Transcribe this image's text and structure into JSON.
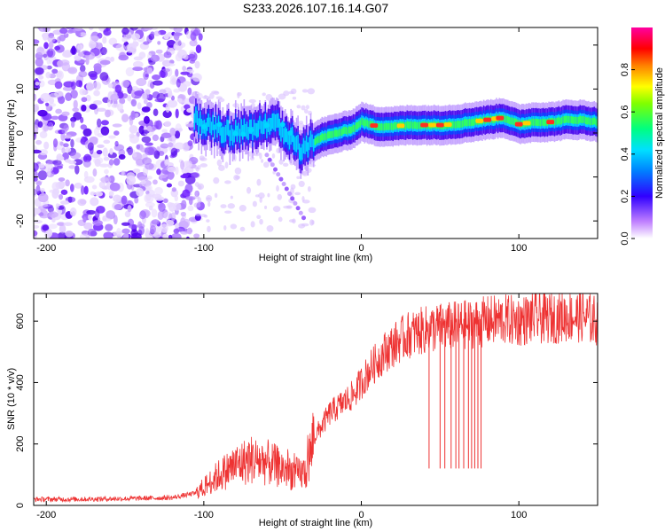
{
  "title": "S233.2026.107.16.14.G07",
  "chart_data": [
    {
      "type": "heatmap",
      "xlabel": "Height of straight line (km)",
      "ylabel": "Frequency (Hz)",
      "xlim": [
        -208,
        150
      ],
      "ylim": [
        -24,
        24
      ],
      "xticks": [
        -200,
        -100,
        0,
        100
      ],
      "yticks": [
        -20,
        -10,
        0,
        10,
        20
      ],
      "xtick_labels": [
        "-200",
        "-100",
        "0",
        "100"
      ],
      "ytick_labels": [
        "-20",
        "-10",
        "0",
        "10",
        "20"
      ],
      "ridge": {
        "description_x": [
          -105,
          -95,
          -85,
          -75,
          -65,
          -55,
          -45,
          -38,
          -32,
          -25,
          -15,
          -5,
          0,
          10,
          20,
          30,
          40,
          50,
          60,
          70,
          80,
          90,
          100,
          110,
          120,
          130,
          140,
          150
        ],
        "frequency": [
          3,
          1.5,
          0,
          0.5,
          1.5,
          2.5,
          -1,
          -4,
          -2.5,
          -1,
          0,
          1,
          2.5,
          1.5,
          1.5,
          1.8,
          1.8,
          1.8,
          2,
          2.5,
          3,
          3.5,
          2,
          2.5,
          2.5,
          3,
          3,
          2.5
        ]
      },
      "colorbar": {
        "label": "Normalized spectral amplitude",
        "range": [
          0,
          1
        ],
        "ticks": [
          0.0,
          0.2,
          0.4,
          0.6,
          0.8
        ],
        "tick_labels": [
          "0.0",
          "0.2",
          "0.4",
          "0.6",
          "0.8"
        ]
      }
    },
    {
      "type": "line",
      "xlabel": "Height of straight line (km)",
      "ylabel": "SNR (10 * v/v)",
      "xlim": [
        -208,
        150
      ],
      "ylim": [
        0,
        690
      ],
      "xticks": [
        -200,
        -100,
        0,
        100
      ],
      "yticks": [
        0,
        200,
        400,
        600
      ],
      "xtick_labels": [
        "-200",
        "-100",
        "0",
        "100"
      ],
      "ytick_labels": [
        "0",
        "200",
        "400",
        "600"
      ],
      "series": [
        {
          "name": "SNR",
          "color": "#ee3333",
          "x": [
            -208,
            -180,
            -150,
            -120,
            -105,
            -100,
            -90,
            -80,
            -70,
            -60,
            -50,
            -40,
            -35,
            -30,
            -25,
            -20,
            -15,
            -10,
            -5,
            0,
            5,
            10,
            15,
            20,
            25,
            30,
            40,
            50,
            60,
            70,
            80,
            90,
            100,
            110,
            120,
            130,
            140,
            150
          ],
          "values": [
            20,
            20,
            22,
            25,
            40,
            60,
            100,
            130,
            150,
            140,
            120,
            100,
            110,
            220,
            260,
            300,
            320,
            340,
            360,
            400,
            440,
            470,
            500,
            520,
            540,
            555,
            570,
            580,
            585,
            590,
            600,
            605,
            600,
            610,
            610,
            615,
            615,
            600
          ],
          "dropouts_x": [
            43,
            50,
            53,
            57,
            60,
            62,
            65,
            68,
            70,
            72,
            74,
            76
          ],
          "dropout_level": 120
        }
      ]
    }
  ]
}
